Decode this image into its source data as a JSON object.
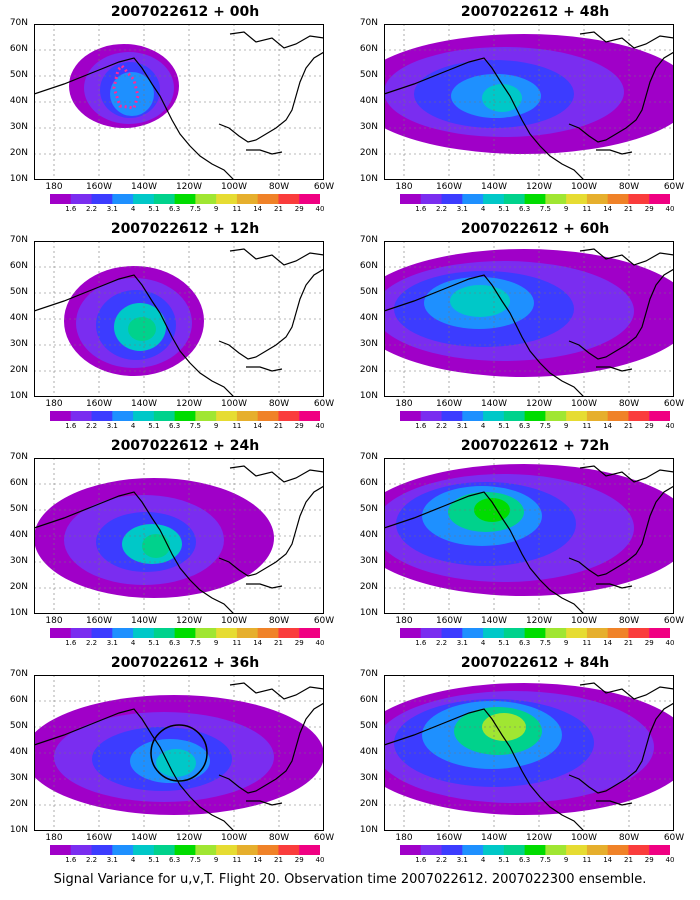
{
  "panels": [
    {
      "title": "2007022612 + 00h",
      "col": 0,
      "row": 0,
      "blobs": [
        [
          90,
          62,
          55,
          42,
          1
        ],
        [
          95,
          64,
          45,
          36,
          2
        ],
        [
          96,
          66,
          30,
          28,
          3
        ],
        [
          98,
          70,
          22,
          22,
          4
        ]
      ],
      "flight_track": true,
      "circle": false
    },
    {
      "title": "2007022612 + 12h",
      "col": 0,
      "row": 1,
      "blobs": [
        [
          100,
          80,
          70,
          55,
          1
        ],
        [
          100,
          82,
          58,
          45,
          2
        ],
        [
          102,
          84,
          40,
          35,
          3
        ],
        [
          106,
          86,
          26,
          24,
          5
        ],
        [
          108,
          88,
          14,
          12,
          6
        ]
      ],
      "flight_track": false,
      "circle": false
    },
    {
      "title": "2007022612 + 24h",
      "col": 0,
      "row": 2,
      "blobs": [
        [
          120,
          80,
          120,
          60,
          1
        ],
        [
          110,
          82,
          80,
          45,
          2
        ],
        [
          112,
          84,
          50,
          30,
          3
        ],
        [
          118,
          86,
          30,
          20,
          5
        ],
        [
          122,
          88,
          14,
          12,
          6
        ]
      ],
      "flight_track": false,
      "circle": false
    },
    {
      "title": "2007022612 + 36h",
      "col": 0,
      "row": 3,
      "blobs": [
        [
          140,
          80,
          150,
          60,
          1
        ],
        [
          130,
          82,
          110,
          45,
          2
        ],
        [
          128,
          84,
          70,
          32,
          3
        ],
        [
          136,
          86,
          40,
          22,
          4
        ],
        [
          142,
          88,
          20,
          14,
          5
        ]
      ],
      "flight_track": false,
      "circle": true
    },
    {
      "title": "2007022612 + 48h",
      "col": 1,
      "row": 0,
      "blobs": [
        [
          140,
          70,
          170,
          60,
          1
        ],
        [
          120,
          68,
          120,
          45,
          2
        ],
        [
          110,
          70,
          80,
          34,
          3
        ],
        [
          112,
          72,
          45,
          22,
          4
        ],
        [
          118,
          74,
          20,
          14,
          5
        ]
      ],
      "flight_track": false,
      "circle": false
    },
    {
      "title": "2007022612 + 60h",
      "col": 1,
      "row": 1,
      "blobs": [
        [
          140,
          72,
          170,
          64,
          1
        ],
        [
          120,
          70,
          130,
          50,
          2
        ],
        [
          100,
          68,
          90,
          38,
          3
        ],
        [
          95,
          62,
          55,
          26,
          4
        ],
        [
          96,
          60,
          30,
          16,
          5
        ]
      ],
      "flight_track": false,
      "circle": false
    },
    {
      "title": "2007022612 + 72h",
      "col": 1,
      "row": 2,
      "blobs": [
        [
          140,
          72,
          170,
          66,
          1
        ],
        [
          120,
          70,
          130,
          54,
          2
        ],
        [
          102,
          66,
          90,
          42,
          3
        ],
        [
          98,
          58,
          60,
          30,
          4
        ],
        [
          102,
          54,
          38,
          20,
          6
        ],
        [
          108,
          52,
          18,
          12,
          7
        ]
      ],
      "flight_track": false,
      "circle": false
    },
    {
      "title": "2007022612 + 84h",
      "col": 1,
      "row": 3,
      "blobs": [
        [
          140,
          74,
          170,
          66,
          1
        ],
        [
          130,
          72,
          140,
          56,
          2
        ],
        [
          110,
          68,
          100,
          44,
          3
        ],
        [
          108,
          60,
          70,
          34,
          4
        ],
        [
          114,
          56,
          44,
          24,
          6
        ],
        [
          120,
          52,
          22,
          14,
          8
        ]
      ],
      "flight_track": false,
      "circle": false
    }
  ],
  "yticks": [
    "70N",
    "60N",
    "50N",
    "40N",
    "30N",
    "20N",
    "10N"
  ],
  "xticks": [
    "180",
    "160W",
    "140W",
    "120W",
    "100W",
    "80W",
    "60W"
  ],
  "colorbar": {
    "labels": [
      "1.6",
      "2.2",
      "3.1",
      "4",
      "5.1",
      "6.3",
      "7.5",
      "9",
      "11",
      "14",
      "21",
      "29",
      "40"
    ],
    "colors": [
      "#ffffff",
      "#a000c8",
      "#7a2df0",
      "#3c3cff",
      "#1e90ff",
      "#00c8c8",
      "#00d28c",
      "#00dc00",
      "#a0e632",
      "#e6dc32",
      "#e6af2d",
      "#f08228",
      "#fa3c3c",
      "#f00082"
    ]
  },
  "footer": "Signal Variance for u,v,T. Flight 20. Observation time 2007022612. 2007022300 ensemble."
}
